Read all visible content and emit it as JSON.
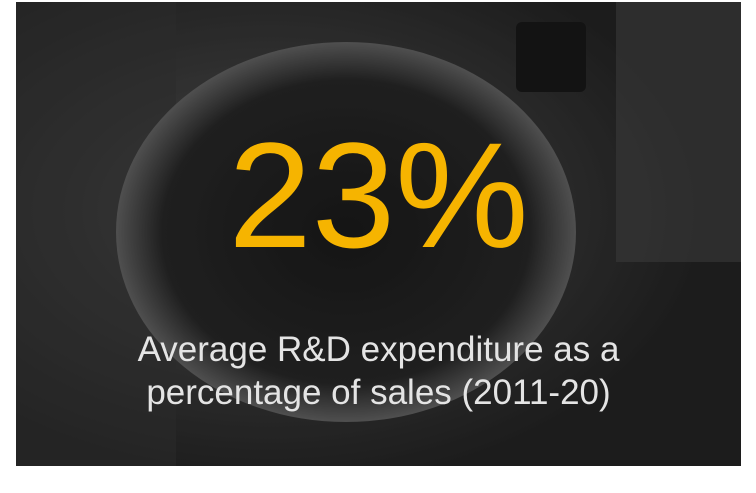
{
  "stat": {
    "value": "23%",
    "caption_lines": [
      "Average R&D expenditure as a",
      "percentage of sales (2011-20)"
    ]
  }
}
